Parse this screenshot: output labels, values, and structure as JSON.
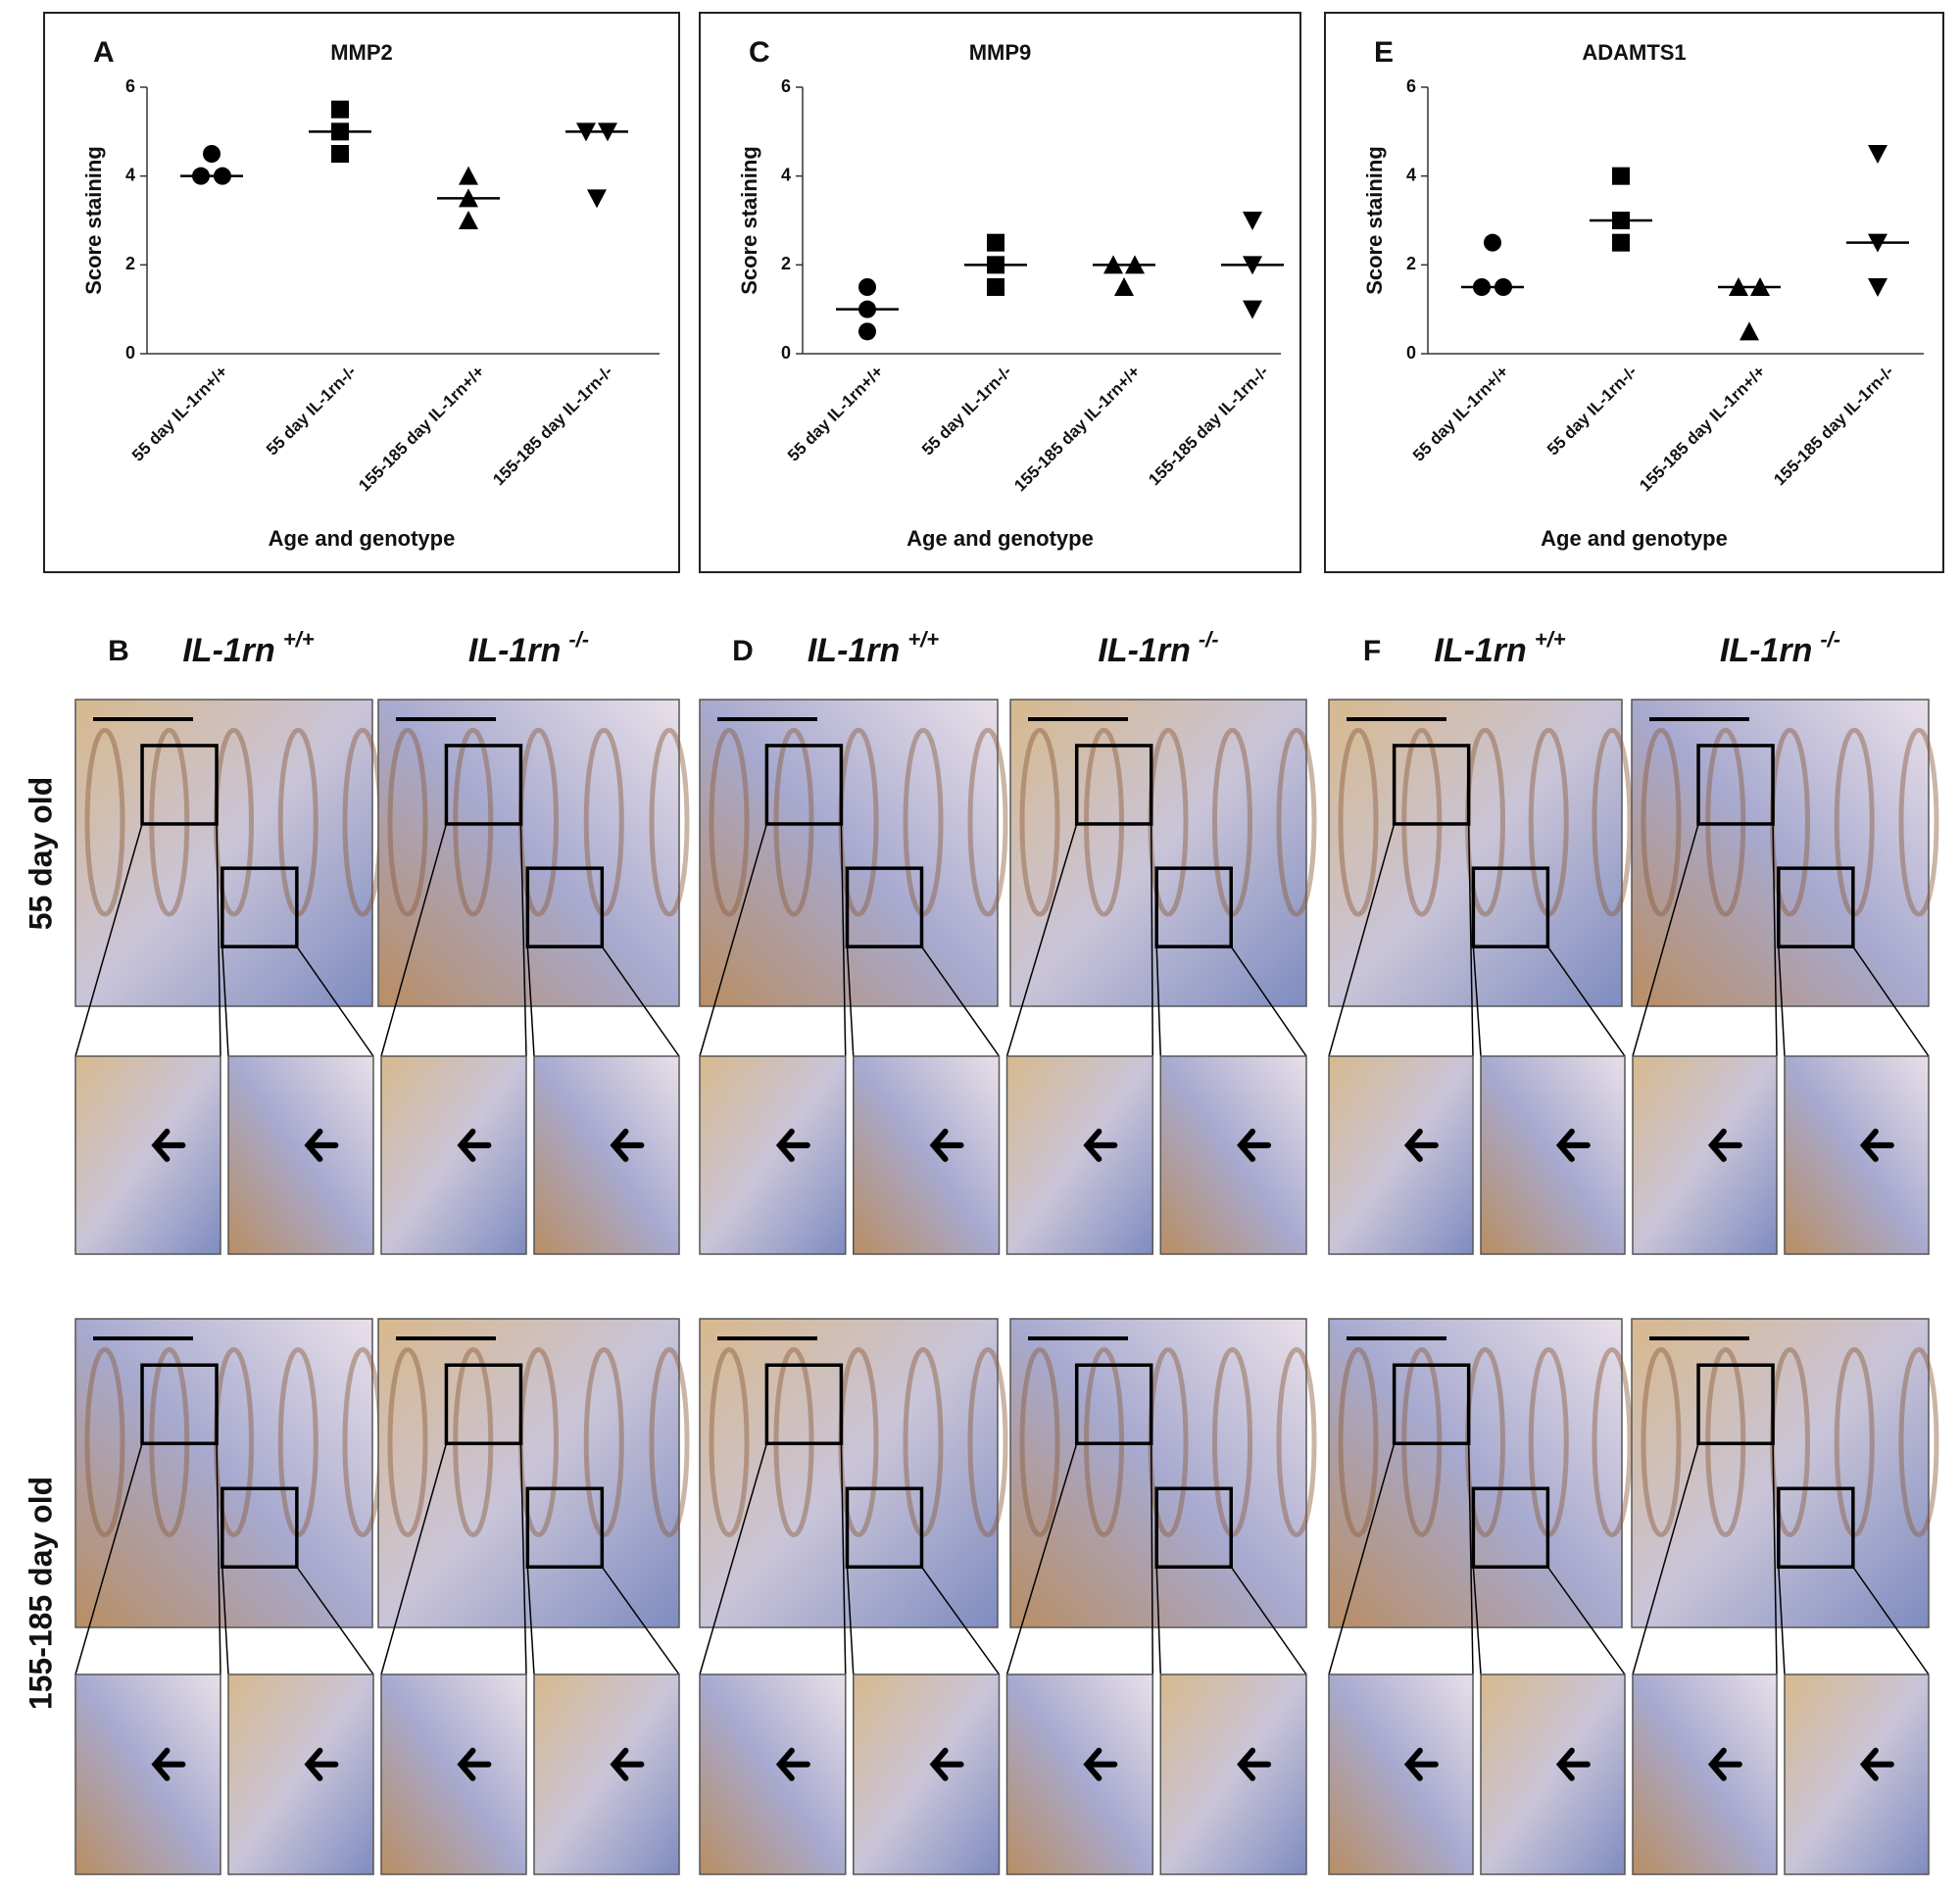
{
  "chart_data": [
    {
      "type": "scatter",
      "letter": "A",
      "title": "MMP2",
      "ylabel": "Score staining",
      "xlabel": "Age and genotype",
      "categories": [
        "55 day IL-1rn+/+",
        "55 day IL-1rn-/-",
        "155-185 day IL-1rn+/+",
        "155-185 day IL-1rn-/-"
      ],
      "markers": [
        "circle",
        "square",
        "triangle-up",
        "triangle-down"
      ],
      "points": [
        [
          4.5,
          4,
          4
        ],
        [
          5.5,
          5,
          4.5
        ],
        [
          4,
          3.5,
          3
        ],
        [
          5,
          5,
          3.5
        ]
      ],
      "medians": [
        4,
        5,
        3.5,
        5
      ],
      "ylim": [
        0,
        6
      ],
      "yticks": [
        0,
        2,
        4,
        6
      ],
      "color": "#000000"
    },
    {
      "type": "scatter",
      "letter": "C",
      "title": "MMP9",
      "ylabel": "Score staining",
      "xlabel": "Age and genotype",
      "categories": [
        "55 day IL-1rn+/+",
        "55 day IL-1rn-/-",
        "155-185 day IL-1rn+/+",
        "155-185 day IL-1rn-/-"
      ],
      "markers": [
        "circle",
        "square",
        "triangle-up",
        "triangle-down"
      ],
      "points": [
        [
          1.5,
          1,
          0.5
        ],
        [
          2.5,
          2,
          1.5
        ],
        [
          2,
          2,
          1.5
        ],
        [
          3,
          2,
          1
        ]
      ],
      "medians": [
        1,
        2,
        2,
        2
      ],
      "ylim": [
        0,
        6
      ],
      "yticks": [
        0,
        2,
        4,
        6
      ],
      "color": "#000000"
    },
    {
      "type": "scatter",
      "letter": "E",
      "title": "ADAMTS1",
      "ylabel": "Score staining",
      "xlabel": "Age and genotype",
      "categories": [
        "55 day IL-1rn+/+",
        "55 day IL-1rn-/-",
        "155-185 day IL-1rn+/+",
        "155-185 day IL-1rn-/-"
      ],
      "markers": [
        "circle",
        "square",
        "triangle-up",
        "triangle-down"
      ],
      "points": [
        [
          2.5,
          1.5,
          1.5
        ],
        [
          4,
          3,
          2.5
        ],
        [
          1.5,
          1.5,
          0.5
        ],
        [
          4.5,
          2.5,
          1.5
        ]
      ],
      "medians": [
        1.5,
        3,
        1.5,
        2.5
      ],
      "ylim": [
        0,
        6
      ],
      "yticks": [
        0,
        2,
        4,
        6
      ],
      "color": "#000000"
    }
  ],
  "micrographs": {
    "rows": [
      "55 day old",
      "155-185 day old"
    ],
    "panels": [
      {
        "letter": "B",
        "columns": [
          {
            "gene": "IL-1rn",
            "genotype": "+/+"
          },
          {
            "gene": "IL-1rn",
            "genotype": "-/-"
          }
        ]
      },
      {
        "letter": "D",
        "columns": [
          {
            "gene": "IL-1rn",
            "genotype": "+/+"
          },
          {
            "gene": "IL-1rn",
            "genotype": "-/-"
          }
        ]
      },
      {
        "letter": "F",
        "columns": [
          {
            "gene": "IL-1rn",
            "genotype": "+/+"
          },
          {
            "gene": "IL-1rn",
            "genotype": "-/-"
          }
        ]
      }
    ]
  }
}
